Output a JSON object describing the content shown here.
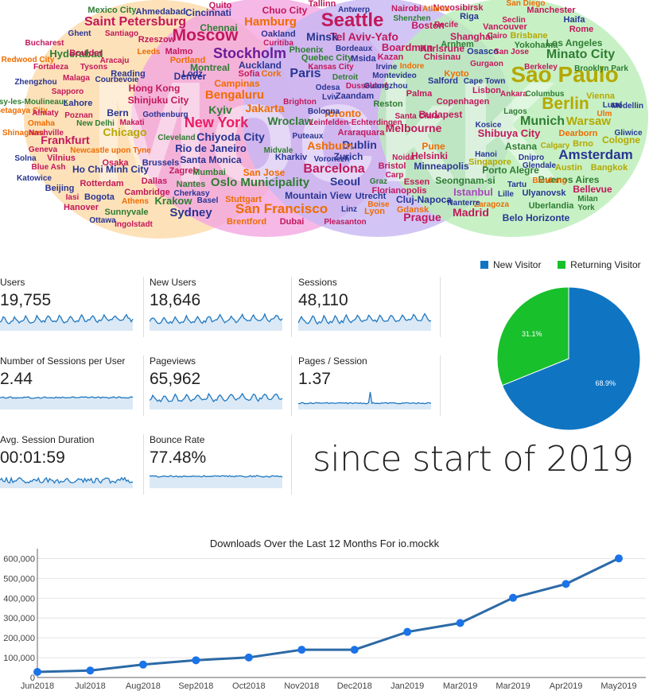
{
  "wordcloud": {
    "background_letters": "MockK",
    "circle_colors": [
      "#fcd9a8",
      "#f3a6e1",
      "#c7b7f3",
      "#b9eeb6"
    ],
    "words": [
      {
        "t": "Seattle",
        "c": "#c2185b"
      },
      {
        "t": "Sao Paulo",
        "c": "#b5a800"
      },
      {
        "t": "Moscow",
        "c": "#c2185b"
      },
      {
        "t": "Berlin",
        "c": "#b5a800"
      },
      {
        "t": "Stockholm",
        "c": "#6a1b9a"
      },
      {
        "t": "San Francisco",
        "c": "#ef6c00"
      },
      {
        "t": "New York",
        "c": "#e91e63"
      },
      {
        "t": "Saint Petersburg",
        "c": "#c2185b"
      },
      {
        "t": "Barcelona",
        "c": "#c2185b"
      },
      {
        "t": "Amsterdam",
        "c": "#283593"
      },
      {
        "t": "Minato City",
        "c": "#2e7d32"
      },
      {
        "t": "Munich",
        "c": "#2e7d32"
      },
      {
        "t": "Hamburg",
        "c": "#ef6c00"
      },
      {
        "t": "Paris",
        "c": "#283593"
      },
      {
        "t": "Oslo Municipality",
        "c": "#2e7d32"
      },
      {
        "t": "Tel Aviv-Yafo",
        "c": "#c2185b"
      },
      {
        "t": "Bengaluru",
        "c": "#ef6c00"
      },
      {
        "t": "Sydney",
        "c": "#283593"
      },
      {
        "t": "Warsaw",
        "c": "#b5a800"
      },
      {
        "t": "Prague",
        "c": "#c2185b"
      },
      {
        "t": "Madrid",
        "c": "#c2185b"
      },
      {
        "t": "Chiyoda City",
        "c": "#283593"
      },
      {
        "t": "Rio de Janeiro",
        "c": "#283593"
      },
      {
        "t": "Melbourne",
        "c": "#c2185b"
      },
      {
        "t": "Dublin",
        "c": "#283593"
      },
      {
        "t": "Ashburn",
        "c": "#ef6c00"
      },
      {
        "t": "Jakarta",
        "c": "#ef6c00"
      },
      {
        "t": "Frankfurt",
        "c": "#c2185b"
      },
      {
        "t": "Chicago",
        "c": "#b5a800"
      },
      {
        "t": "Hyderabad",
        "c": "#2e7d32"
      },
      {
        "t": "Wroclaw",
        "c": "#2e7d32"
      },
      {
        "t": "Kyiv",
        "c": "#2e7d32"
      },
      {
        "t": "Shibuya City",
        "c": "#c2185b"
      },
      {
        "t": "Seoul",
        "c": "#283593"
      },
      {
        "t": "Minsk",
        "c": "#283593"
      },
      {
        "t": "Toronto",
        "c": "#ef6c00"
      },
      {
        "t": "Boardman",
        "c": "#c2185b"
      },
      {
        "t": "Istanbul",
        "c": "#ab47bc"
      },
      {
        "t": "Denver",
        "c": "#283593"
      },
      {
        "t": "Montreal",
        "c": "#2e7d32"
      },
      {
        "t": "Los Angeles",
        "c": "#2e7d32"
      },
      {
        "t": "Cologne",
        "c": "#b5a800"
      },
      {
        "t": "Helsinki",
        "c": "#c2185b"
      },
      {
        "t": "Budapest",
        "c": "#c2185b"
      },
      {
        "t": "Zurich",
        "c": "#283593"
      },
      {
        "t": "Krakow",
        "c": "#2e7d32"
      },
      {
        "t": "Chennai",
        "c": "#2e7d32"
      },
      {
        "t": "Shinjuku City",
        "c": "#c2185b"
      },
      {
        "t": "Hong Kong",
        "c": "#c2185b"
      },
      {
        "t": "Ho Chi Minh City",
        "c": "#283593"
      },
      {
        "t": "Santa Monica",
        "c": "#283593"
      },
      {
        "t": "San Jose",
        "c": "#ef6c00"
      },
      {
        "t": "Stuttgart",
        "c": "#ef6c00"
      },
      {
        "t": "Pune",
        "c": "#ef6c00"
      },
      {
        "t": "Bangkok",
        "c": "#b5a800"
      },
      {
        "t": "Austin",
        "c": "#b5a800"
      },
      {
        "t": "Astana",
        "c": "#2e7d32"
      },
      {
        "t": "Porto Alegre",
        "c": "#2e7d32"
      },
      {
        "t": "Buenos Aires",
        "c": "#2e7d32"
      },
      {
        "t": "Belo Horizonte",
        "c": "#283593"
      },
      {
        "t": "Seongnam-si",
        "c": "#2e7d32"
      },
      {
        "t": "Minneapolis",
        "c": "#283593"
      },
      {
        "t": "Mountain View",
        "c": "#283593"
      },
      {
        "t": "Cincinnati",
        "c": "#283593"
      },
      {
        "t": "Chuo City",
        "c": "#c2185b"
      },
      {
        "t": "Tallinn",
        "c": "#c2185b"
      },
      {
        "t": "Manchester",
        "c": "#c2185b"
      },
      {
        "t": "Boston",
        "c": "#c2185b"
      },
      {
        "t": "Karlsruhe",
        "c": "#c2185b"
      },
      {
        "t": "Shanghai",
        "c": "#c2185b"
      },
      {
        "t": "Vienna",
        "c": "#b5a800"
      },
      {
        "t": "Singapore",
        "c": "#b5a800"
      },
      {
        "t": "Bellevue",
        "c": "#c2185b"
      },
      {
        "t": "Uberlandia",
        "c": "#2e7d32"
      },
      {
        "t": "Ulyanovsk",
        "c": "#283593"
      },
      {
        "t": "Kharkiv",
        "c": "#283593"
      },
      {
        "t": "Reston",
        "c": "#2e7d32"
      },
      {
        "t": "Lisbon",
        "c": "#c2185b"
      },
      {
        "t": "Brentford",
        "c": "#ef6c00"
      },
      {
        "t": "Dubai",
        "c": "#c2185b"
      },
      {
        "t": "Pleasanton",
        "c": "#c2185b"
      },
      {
        "t": "Ottawa",
        "c": "#283593"
      },
      {
        "t": "Ingolstadt",
        "c": "#c2185b"
      },
      {
        "t": "Bogota",
        "c": "#283593"
      },
      {
        "t": "Beijing",
        "c": "#283593"
      },
      {
        "t": "Dallas",
        "c": "#c2185b"
      },
      {
        "t": "Osaka",
        "c": "#c2185b"
      },
      {
        "t": "Lodz",
        "c": "#283593"
      },
      {
        "t": "Portland",
        "c": "#ef6c00"
      },
      {
        "t": "Campinas",
        "c": "#ef6c00"
      },
      {
        "t": "Auckland",
        "c": "#283593"
      },
      {
        "t": "Phoenix",
        "c": "#2e7d32"
      },
      {
        "t": "Quebec City",
        "c": "#2e7d32"
      },
      {
        "t": "Kazan",
        "c": "#c2185b"
      },
      {
        "t": "Chisinau",
        "c": "#c2185b"
      },
      {
        "t": "Vancouver",
        "c": "#c2185b"
      },
      {
        "t": "Brisbane",
        "c": "#b5a800"
      },
      {
        "t": "Yokohama",
        "c": "#2e7d32"
      },
      {
        "t": "Haifa",
        "c": "#283593"
      },
      {
        "t": "Rome",
        "c": "#c2185b"
      },
      {
        "t": "Novosibirsk",
        "c": "#c2185b"
      },
      {
        "t": "Riga",
        "c": "#283593"
      },
      {
        "t": "San Diego",
        "c": "#ef6c00"
      },
      {
        "t": "Antwerp",
        "c": "#283593"
      },
      {
        "t": "Nairobi",
        "c": "#c2185b"
      },
      {
        "t": "Atlanta",
        "c": "#ef6c00"
      },
      {
        "t": "Quito",
        "c": "#c2185b"
      },
      {
        "t": "Mexico City",
        "c": "#2e7d32"
      },
      {
        "t": "Ahmedabad",
        "c": "#283593"
      },
      {
        "t": "Santiago",
        "c": "#c2185b"
      },
      {
        "t": "Rzeszow",
        "c": "#c2185b"
      },
      {
        "t": "Ghent",
        "c": "#283593"
      },
      {
        "t": "Boulder",
        "c": "#c2185b"
      },
      {
        "t": "Bucharest",
        "c": "#c2185b"
      },
      {
        "t": "Aracaju",
        "c": "#c2185b"
      },
      {
        "t": "Redwood City",
        "c": "#ef6c00"
      },
      {
        "t": "Fortaleza",
        "c": "#c2185b"
      },
      {
        "t": "Tysons",
        "c": "#c2185b"
      },
      {
        "t": "Reading",
        "c": "#283593"
      },
      {
        "t": "Zhengzhou",
        "c": "#283593"
      },
      {
        "t": "Malaga",
        "c": "#c2185b"
      },
      {
        "t": "Courbevoie",
        "c": "#283593"
      },
      {
        "t": "Sapporo",
        "c": "#c2185b"
      },
      {
        "t": "Issy-les-Moulineaux",
        "c": "#2e7d32"
      },
      {
        "t": "Lahore",
        "c": "#283593"
      },
      {
        "t": "Setagaya City",
        "c": "#ef6c00"
      },
      {
        "t": "Almaty",
        "c": "#c2185b"
      },
      {
        "t": "Bern",
        "c": "#283593"
      },
      {
        "t": "Poznan",
        "c": "#c2185b"
      },
      {
        "t": "Omaha",
        "c": "#ef6c00"
      },
      {
        "t": "New Delhi",
        "c": "#2e7d32"
      },
      {
        "t": "Makati",
        "c": "#c2185b"
      },
      {
        "t": "Shinagawa",
        "c": "#ef6c00"
      },
      {
        "t": "Nashville",
        "c": "#c2185b"
      },
      {
        "t": "Geneva",
        "c": "#c2185b"
      },
      {
        "t": "Solna",
        "c": "#283593"
      },
      {
        "t": "Vilnius",
        "c": "#c2185b"
      },
      {
        "t": "Blue Ash",
        "c": "#c2185b"
      },
      {
        "t": "Katowice",
        "c": "#283593"
      },
      {
        "t": "Rotterdam",
        "c": "#c2185b"
      },
      {
        "t": "Iasi",
        "c": "#c2185b"
      },
      {
        "t": "Hanover",
        "c": "#c2185b"
      },
      {
        "t": "Sunnyvale",
        "c": "#2e7d32"
      },
      {
        "t": "Athens",
        "c": "#ef6c00"
      },
      {
        "t": "Cambridge",
        "c": "#c2185b"
      },
      {
        "t": "Basel",
        "c": "#283593"
      },
      {
        "t": "Cherkasy",
        "c": "#283593"
      },
      {
        "t": "Brussels",
        "c": "#283593"
      },
      {
        "t": "Gothenburg",
        "c": "#283593"
      },
      {
        "t": "Cleveland",
        "c": "#2e7d32"
      },
      {
        "t": "Nantes",
        "c": "#2e7d32"
      },
      {
        "t": "Zagreb",
        "c": "#c2185b"
      },
      {
        "t": "Mumbai",
        "c": "#2e7d32"
      },
      {
        "t": "Newcastle upon Tyne",
        "c": "#ef6c00"
      },
      {
        "t": "Leeds",
        "c": "#ef6c00"
      },
      {
        "t": "Malmo",
        "c": "#c2185b"
      },
      {
        "t": "Sofia",
        "c": "#c2185b"
      },
      {
        "t": "Cork",
        "c": "#ef6c00"
      },
      {
        "t": "Odesa",
        "c": "#283593"
      },
      {
        "t": "Brighton",
        "c": "#c2185b"
      },
      {
        "t": "Bologna",
        "c": "#283593"
      },
      {
        "t": "Puteaux",
        "c": "#283593"
      },
      {
        "t": "Midvale",
        "c": "#2e7d32"
      },
      {
        "t": "Voronezh",
        "c": "#283593"
      },
      {
        "t": "Noida",
        "c": "#c2185b"
      },
      {
        "t": "Bristol",
        "c": "#c2185b"
      },
      {
        "t": "Carp",
        "c": "#c2185b"
      },
      {
        "t": "Essen",
        "c": "#c2185b"
      },
      {
        "t": "Florianopolis",
        "c": "#c2185b"
      },
      {
        "t": "Cluj-Napoca",
        "c": "#283593"
      },
      {
        "t": "Gdansk",
        "c": "#ef6c00"
      },
      {
        "t": "Linz",
        "c": "#283593"
      },
      {
        "t": "Boise",
        "c": "#ef6c00"
      },
      {
        "t": "Lyon",
        "c": "#ef6c00"
      },
      {
        "t": "Utrecht",
        "c": "#283593"
      },
      {
        "t": "Graz",
        "c": "#2e7d32"
      },
      {
        "t": "Oakland",
        "c": "#283593"
      },
      {
        "t": "Curitiba",
        "c": "#c2185b"
      },
      {
        "t": "Bordeaux",
        "c": "#283593"
      },
      {
        "t": "Msida",
        "c": "#283593"
      },
      {
        "t": "Kansas City",
        "c": "#c2185b"
      },
      {
        "t": "Irvine",
        "c": "#283593"
      },
      {
        "t": "Indore",
        "c": "#ef6c00"
      },
      {
        "t": "Detroit",
        "c": "#2e7d32"
      },
      {
        "t": "Montevideo",
        "c": "#283593"
      },
      {
        "t": "Lviv",
        "c": "#283593"
      },
      {
        "t": "Zaandam",
        "c": "#283593"
      },
      {
        "t": "Dusseldorf",
        "c": "#c2185b"
      },
      {
        "t": "Guangzhou",
        "c": "#283593"
      },
      {
        "t": "Salford",
        "c": "#283593"
      },
      {
        "t": "Cape Town",
        "c": "#283593"
      },
      {
        "t": "Palma",
        "c": "#c2185b"
      },
      {
        "t": "Copenhagen",
        "c": "#c2185b"
      },
      {
        "t": "Leinfelden-Echterdingen",
        "c": "#c2185b"
      },
      {
        "t": "Araraquara",
        "c": "#c2185b"
      },
      {
        "t": "Santa Clara",
        "c": "#c2185b"
      },
      {
        "t": "Shenzhen",
        "c": "#2e7d32"
      },
      {
        "t": "Recife",
        "c": "#c2185b"
      },
      {
        "t": "Arnhem",
        "c": "#2e7d32"
      },
      {
        "t": "Cairo",
        "c": "#c2185b"
      },
      {
        "t": "Seclin",
        "c": "#c2185b"
      },
      {
        "t": "Osasco",
        "c": "#283593"
      },
      {
        "t": "San Jose",
        "c": "#c2185b"
      },
      {
        "t": "Gurgaon",
        "c": "#c2185b"
      },
      {
        "t": "Berkeley",
        "c": "#c2185b"
      },
      {
        "t": "Brooklyn Park",
        "c": "#2e7d32"
      },
      {
        "t": "Kyoto",
        "c": "#ef6c00"
      },
      {
        "t": "Ankara",
        "c": "#c2185b"
      },
      {
        "t": "Columbus",
        "c": "#2e7d32"
      },
      {
        "t": "Lund",
        "c": "#283593"
      },
      {
        "t": "Medellin",
        "c": "#283593"
      },
      {
        "t": "Lagos",
        "c": "#2e7d32"
      },
      {
        "t": "Ulm",
        "c": "#ef6c00"
      },
      {
        "t": "Kosice",
        "c": "#283593"
      },
      {
        "t": "Dearborn",
        "c": "#ef6c00"
      },
      {
        "t": "Gliwice",
        "c": "#283593"
      },
      {
        "t": "Calgary",
        "c": "#b5a800"
      },
      {
        "t": "Brno",
        "c": "#b5a800"
      },
      {
        "t": "Hanoi",
        "c": "#283593"
      },
      {
        "t": "Dnipro",
        "c": "#283593"
      },
      {
        "t": "Glendale",
        "c": "#283593"
      },
      {
        "t": "Bandung",
        "c": "#ef6c00"
      },
      {
        "t": "Tartu",
        "c": "#283593"
      },
      {
        "t": "Lille",
        "c": "#283593"
      },
      {
        "t": "Milan",
        "c": "#2e7d32"
      },
      {
        "t": "York",
        "c": "#2e7d32"
      },
      {
        "t": "Zaragoza",
        "c": "#ef6c00"
      },
      {
        "t": "Nanterre",
        "c": "#283593"
      },
      {
        "t": "Leipzig",
        "c": "#283593"
      },
      {
        "t": "Porto",
        "c": "#ef6c00"
      }
    ]
  },
  "metrics": [
    {
      "label": "Users",
      "value": "19,755",
      "kind": "spiky"
    },
    {
      "label": "New Users",
      "value": "18,646",
      "kind": "spiky"
    },
    {
      "label": "Sessions",
      "value": "48,110",
      "kind": "spiky"
    },
    {
      "label": "Number of Sessions per User",
      "value": "2.44",
      "kind": "flat"
    },
    {
      "label": "Pageviews",
      "value": "65,962",
      "kind": "spiky"
    },
    {
      "label": "Pages / Session",
      "value": "1.37",
      "kind": "spike"
    },
    {
      "label": "Avg. Session Duration",
      "value": "00:01:59",
      "kind": "noisy"
    },
    {
      "label": "Bounce Rate",
      "value": "77.48%",
      "kind": "flat"
    }
  ],
  "metric_colors": {
    "line": "#1f78c1",
    "fill": "#dbe9f6"
  },
  "since_text": "since start of 2019",
  "pie": {
    "legend": [
      {
        "name": "New Visitor",
        "color": "#0f75c3"
      },
      {
        "name": "Returning Visitor",
        "color": "#18c02c"
      }
    ],
    "slices": [
      {
        "label": "68.9%",
        "value": 68.9,
        "color": "#0f75c3"
      },
      {
        "label": "31.1%",
        "value": 31.1,
        "color": "#18c02c"
      }
    ]
  },
  "chart_data": {
    "type": "line",
    "title": "Downloads Over the Last 12 Months For io.mockk",
    "categories": [
      "Jun2018",
      "Jul2018",
      "Aug2018",
      "Sep2018",
      "Oct2018",
      "Nov2018",
      "Dec2018",
      "Jan2019",
      "Mar2019",
      "Mar2019",
      "Apr2019",
      "May2019"
    ],
    "values": [
      28000,
      35000,
      65000,
      87000,
      101000,
      140000,
      140000,
      230000,
      275000,
      402000,
      472000,
      601000
    ],
    "ylim": [
      0,
      650000
    ],
    "yticks": [
      0,
      100000,
      200000,
      300000,
      400000,
      500000,
      600000
    ],
    "ytick_labels": [
      "0",
      "100,000",
      "200,000",
      "300,000",
      "400,000",
      "500,000",
      "600,000"
    ],
    "color": "#2c6aa6",
    "grid": true
  }
}
